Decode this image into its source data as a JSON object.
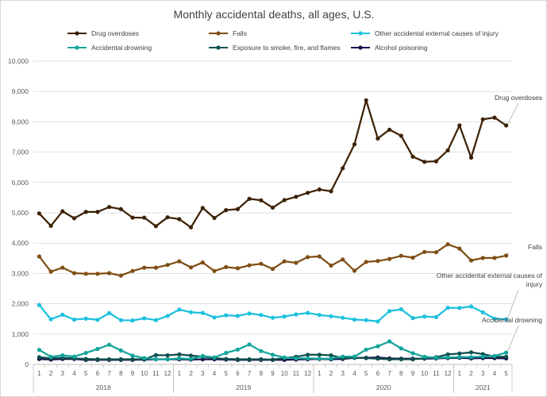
{
  "chart_data": {
    "type": "line",
    "title": "Monthly accidental deaths, all ages, U.S.",
    "ylim": [
      0,
      10000
    ],
    "yticks": [
      "0",
      "1,000",
      "2,000",
      "3,000",
      "4,000",
      "5,000",
      "6,000",
      "7,000",
      "8,000",
      "9,000",
      "10,000"
    ],
    "months": [
      "1",
      "2",
      "3",
      "4",
      "5",
      "6",
      "7",
      "8",
      "9",
      "10",
      "11",
      "12",
      "1",
      "2",
      "3",
      "4",
      "5",
      "6",
      "7",
      "8",
      "9",
      "10",
      "11",
      "12",
      "1",
      "2",
      "3",
      "4",
      "5",
      "6",
      "7",
      "8",
      "9",
      "10",
      "11",
      "12",
      "1",
      "2",
      "3",
      "4",
      "5"
    ],
    "years": [
      {
        "label": "2018",
        "start": 0,
        "end": 11
      },
      {
        "label": "2019",
        "start": 12,
        "end": 23
      },
      {
        "label": "2020",
        "start": 24,
        "end": 35
      },
      {
        "label": "2021",
        "start": 36,
        "end": 40
      }
    ],
    "grid": true,
    "legend_position": "top",
    "series": [
      {
        "name": "Drug overdoses",
        "color": "#3d2206",
        "values": [
          4980,
          4570,
          5050,
          4820,
          5030,
          5030,
          5190,
          5120,
          4840,
          4840,
          4560,
          4850,
          4790,
          4520,
          5160,
          4830,
          5090,
          5120,
          5460,
          5410,
          5170,
          5420,
          5530,
          5660,
          5770,
          5710,
          6470,
          7260,
          8710,
          7450,
          7740,
          7540,
          6850,
          6680,
          6700,
          7060,
          7880,
          6820,
          8080,
          8140,
          7880
        ]
      },
      {
        "name": "Falls",
        "color": "#7f4e14",
        "values": [
          3560,
          3060,
          3190,
          3010,
          2990,
          2990,
          3010,
          2930,
          3080,
          3190,
          3190,
          3280,
          3400,
          3200,
          3360,
          3080,
          3210,
          3170,
          3270,
          3320,
          3150,
          3400,
          3350,
          3540,
          3560,
          3260,
          3460,
          3090,
          3380,
          3410,
          3480,
          3580,
          3520,
          3710,
          3700,
          3960,
          3820,
          3430,
          3510,
          3510,
          3590
        ]
      },
      {
        "name": "Other accidental external causes of injury",
        "color": "#1cc0de",
        "values": [
          1960,
          1490,
          1640,
          1480,
          1510,
          1470,
          1690,
          1460,
          1450,
          1520,
          1460,
          1600,
          1810,
          1720,
          1700,
          1550,
          1620,
          1600,
          1680,
          1630,
          1540,
          1580,
          1650,
          1700,
          1630,
          1590,
          1540,
          1480,
          1460,
          1420,
          1760,
          1820,
          1530,
          1580,
          1560,
          1870,
          1860,
          1910,
          1720,
          1510,
          1490
        ]
      },
      {
        "name": "Accidental drowning",
        "color": "#12a59b",
        "values": [
          480,
          250,
          300,
          260,
          380,
          510,
          650,
          460,
          290,
          210,
          170,
          170,
          200,
          180,
          280,
          230,
          380,
          490,
          660,
          440,
          320,
          230,
          200,
          200,
          190,
          190,
          260,
          260,
          490,
          600,
          760,
          530,
          370,
          250,
          220,
          230,
          240,
          240,
          260,
          280,
          390
        ]
      },
      {
        "name": "Exposure to smoke, fire, and flames",
        "color": "#0e4f4e",
        "values": [
          240,
          200,
          220,
          200,
          180,
          170,
          170,
          170,
          170,
          170,
          310,
          300,
          330,
          290,
          260,
          210,
          180,
          170,
          170,
          170,
          160,
          210,
          250,
          320,
          320,
          300,
          210,
          220,
          210,
          190,
          170,
          170,
          170,
          200,
          240,
          330,
          360,
          400,
          340,
          260,
          250
        ]
      },
      {
        "name": "Alcohol poisoning",
        "color": "#15134b",
        "values": [
          180,
          160,
          180,
          180,
          150,
          150,
          150,
          150,
          150,
          160,
          170,
          170,
          170,
          160,
          170,
          170,
          160,
          150,
          150,
          150,
          150,
          150,
          160,
          170,
          180,
          170,
          180,
          220,
          220,
          230,
          200,
          190,
          190,
          190,
          200,
          210,
          220,
          200,
          210,
          210,
          200
        ]
      }
    ],
    "annotations": [
      {
        "series": 0,
        "lines": [
          "Drug overdoses"
        ]
      },
      {
        "series": 1,
        "lines": [
          "Falls"
        ]
      },
      {
        "series": 2,
        "lines": [
          "Other accidental external causes of",
          "injury"
        ]
      },
      {
        "series": 3,
        "lines": [
          "Accidental drowning"
        ]
      }
    ]
  }
}
